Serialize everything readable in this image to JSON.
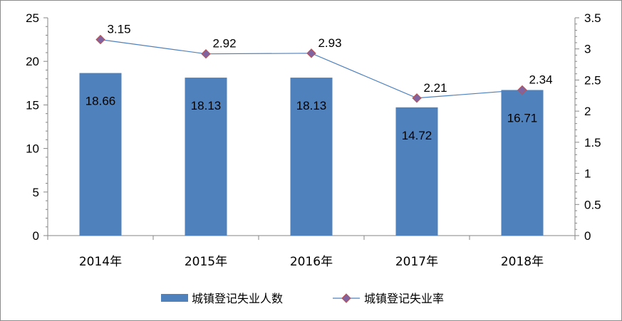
{
  "chart_data": {
    "type": "bar+line",
    "categories": [
      "2014年",
      "2015年",
      "2016年",
      "2017年",
      "2018年"
    ],
    "series": [
      {
        "name": "城镇登记失业人数",
        "type": "bar",
        "axis": "left",
        "values": [
          18.66,
          18.13,
          18.13,
          14.72,
          16.71
        ],
        "labels": [
          "18.66",
          "18.13",
          "18.13",
          "14.72",
          "16.71"
        ],
        "color": "#4f81bd"
      },
      {
        "name": "城镇登记失业率",
        "type": "line",
        "axis": "right",
        "values": [
          3.15,
          2.92,
          2.93,
          2.21,
          2.34
        ],
        "labels": [
          "3.15",
          "2.92",
          "2.93",
          "2.21",
          "2.34"
        ],
        "color": "#4f81bd",
        "marker_color": "#8064a2"
      }
    ],
    "y_left": {
      "min": 0,
      "max": 25,
      "ticks": [
        "0",
        "5",
        "10",
        "15",
        "20",
        "25"
      ]
    },
    "y_right": {
      "min": 0,
      "max": 3.5,
      "ticks": [
        "0",
        "0.5",
        "1",
        "1.5",
        "2",
        "2.5",
        "3",
        "3.5"
      ]
    },
    "grid": false,
    "legend_position": "bottom"
  }
}
